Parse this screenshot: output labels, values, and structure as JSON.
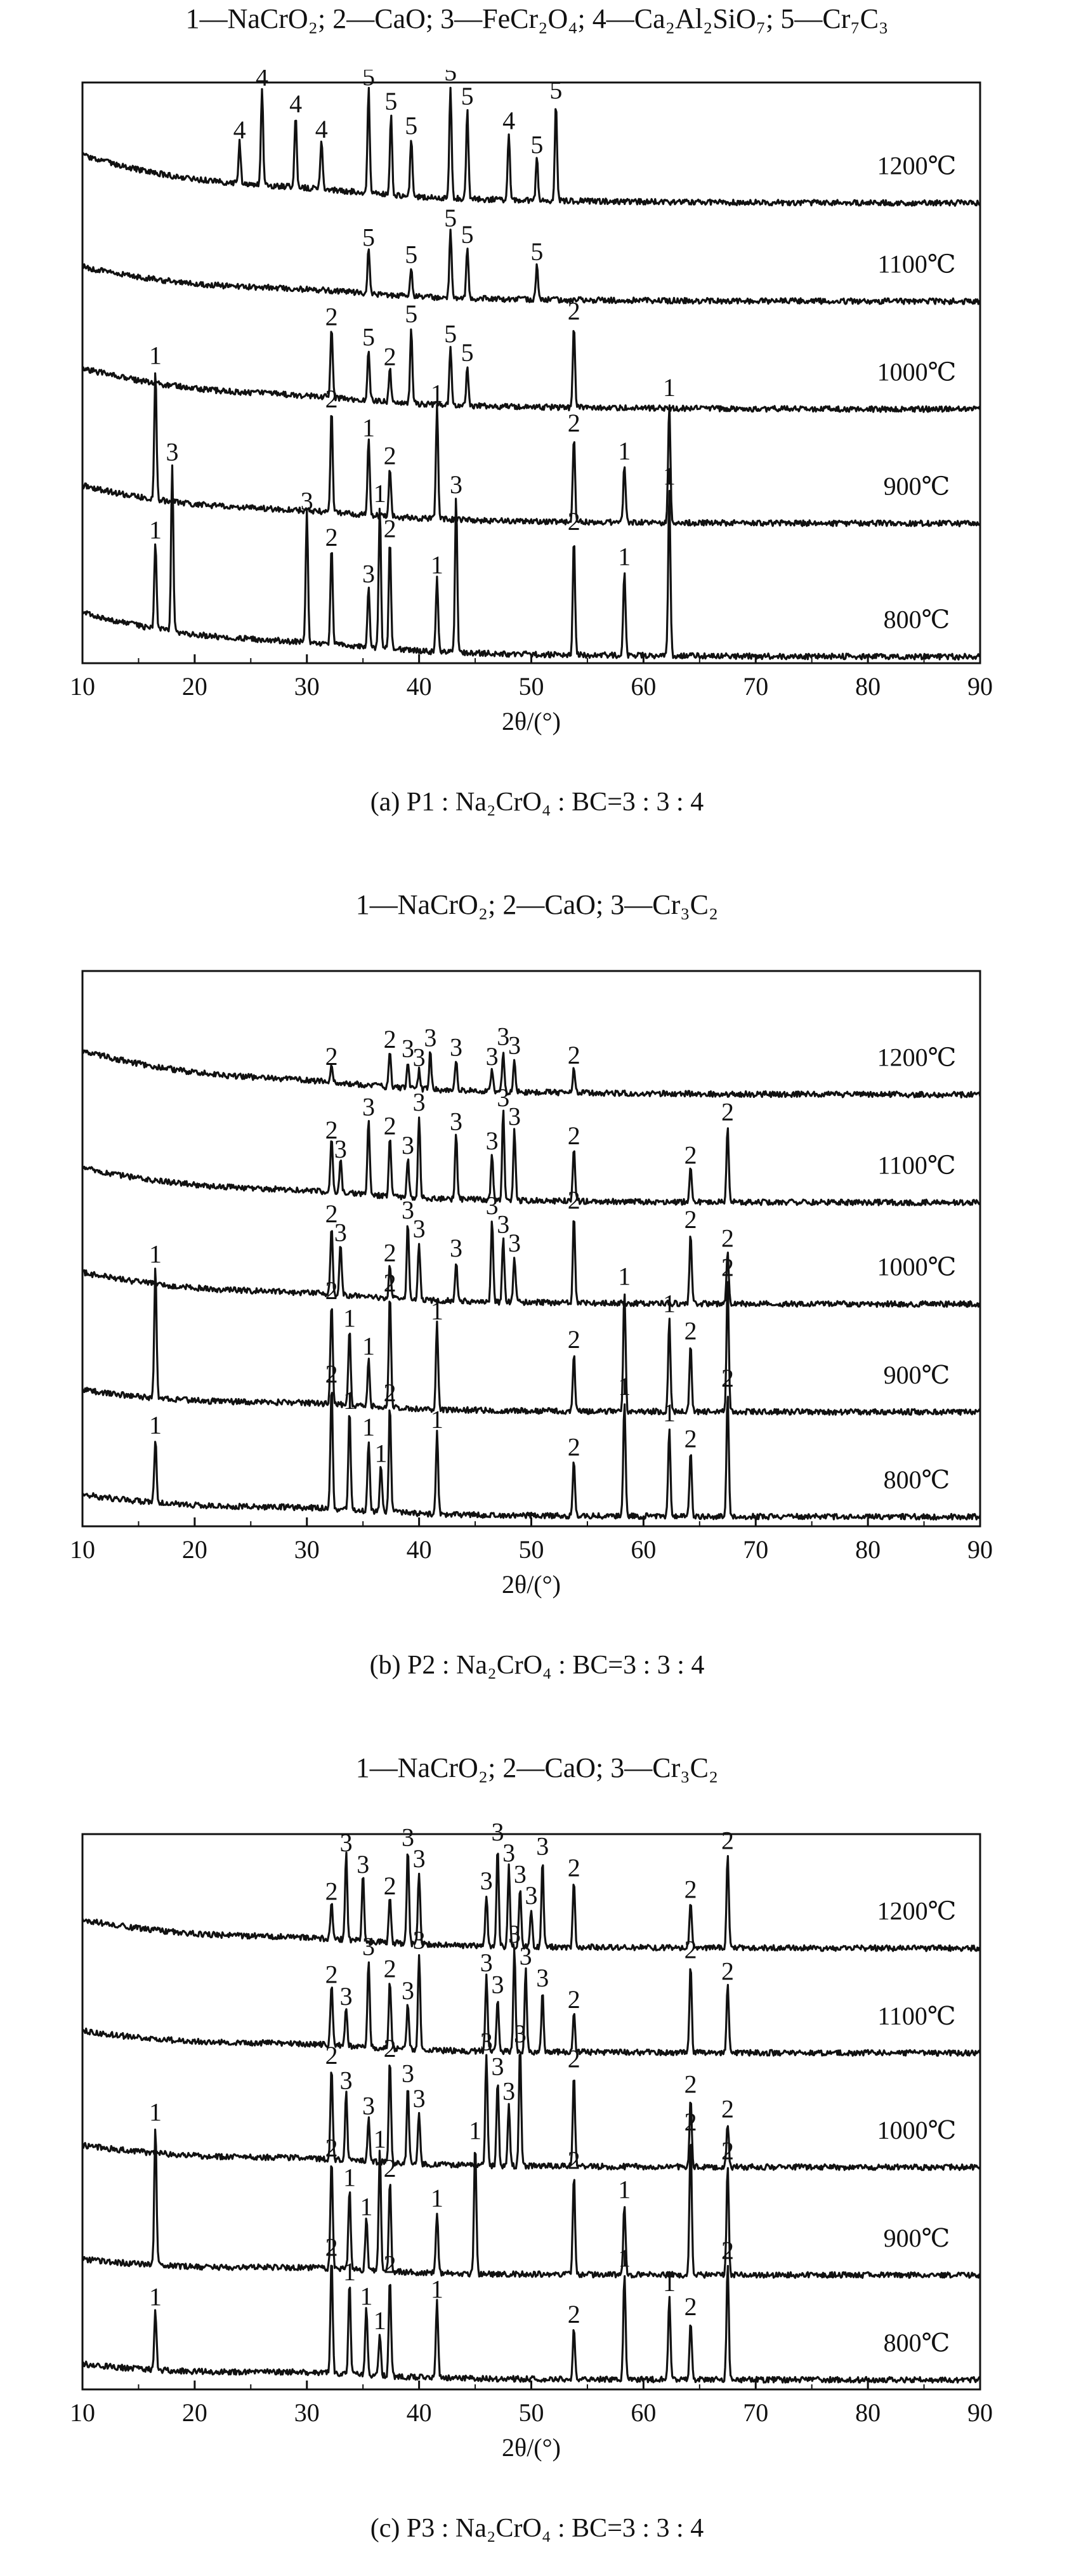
{
  "chart_data": [
    {
      "type": "line",
      "panel": "a",
      "legend": "1—NaCrO₂; 2—CaO; 3—FeCr₂O₄; 4—Ca₂Al₂SiO₇; 5—Cr₇C₃",
      "caption": "(a) P1 : Na₂CrO₄ : BC=3 : 3 : 4",
      "xlabel": "2θ/(°)",
      "ylabel": "",
      "xlim": [
        10,
        90
      ],
      "xticks": [
        "10",
        "20",
        "30",
        "40",
        "50",
        "60",
        "70",
        "80",
        "90"
      ],
      "grid": false,
      "series": [
        {
          "name": "1200℃",
          "peaks": [
            {
              "x": 24.0,
              "label": "4"
            },
            {
              "x": 26.0,
              "label": "4"
            },
            {
              "x": 29.0,
              "label": "4"
            },
            {
              "x": 31.3,
              "label": "4"
            },
            {
              "x": 35.5,
              "label": "5"
            },
            {
              "x": 37.5,
              "label": "5"
            },
            {
              "x": 39.3,
              "label": "5"
            },
            {
              "x": 42.8,
              "label": "5"
            },
            {
              "x": 44.3,
              "label": "5"
            },
            {
              "x": 48.0,
              "label": "4"
            },
            {
              "x": 50.5,
              "label": "5"
            },
            {
              "x": 52.2,
              "label": "5"
            }
          ]
        },
        {
          "name": "1100℃",
          "peaks": [
            {
              "x": 35.5,
              "label": "5"
            },
            {
              "x": 39.3,
              "label": "5"
            },
            {
              "x": 42.8,
              "label": "5"
            },
            {
              "x": 44.3,
              "label": "5"
            },
            {
              "x": 50.5,
              "label": "5"
            }
          ]
        },
        {
          "name": "1000℃",
          "peaks": [
            {
              "x": 32.2,
              "label": "2"
            },
            {
              "x": 35.5,
              "label": "5"
            },
            {
              "x": 37.4,
              "label": "2"
            },
            {
              "x": 39.3,
              "label": "5"
            },
            {
              "x": 42.8,
              "label": "5"
            },
            {
              "x": 44.3,
              "label": "5"
            },
            {
              "x": 53.8,
              "label": "2"
            }
          ]
        },
        {
          "name": "900℃",
          "peaks": [
            {
              "x": 16.5,
              "label": "1"
            },
            {
              "x": 32.2,
              "label": "2"
            },
            {
              "x": 35.5,
              "label": "1"
            },
            {
              "x": 37.4,
              "label": "2"
            },
            {
              "x": 41.6,
              "label": "1"
            },
            {
              "x": 53.8,
              "label": "2"
            },
            {
              "x": 58.3,
              "label": "1"
            },
            {
              "x": 62.3,
              "label": "1"
            }
          ]
        },
        {
          "name": "800℃",
          "peaks": [
            {
              "x": 16.5,
              "label": "1"
            },
            {
              "x": 18.0,
              "label": "3"
            },
            {
              "x": 30.0,
              "label": "3"
            },
            {
              "x": 32.2,
              "label": "2"
            },
            {
              "x": 35.5,
              "label": "3"
            },
            {
              "x": 36.5,
              "label": "1"
            },
            {
              "x": 37.4,
              "label": "2"
            },
            {
              "x": 41.6,
              "label": "1"
            },
            {
              "x": 43.3,
              "label": "3"
            },
            {
              "x": 53.8,
              "label": "2"
            },
            {
              "x": 58.3,
              "label": "1"
            },
            {
              "x": 62.3,
              "label": "1"
            }
          ]
        }
      ]
    },
    {
      "type": "line",
      "panel": "b",
      "legend": "1—NaCrO₂; 2—CaO; 3—Cr₃C₂",
      "caption": "(b) P2 : Na₂CrO₄ : BC=3 : 3 : 4",
      "xlabel": "2θ/(°)",
      "ylabel": "",
      "xlim": [
        10,
        90
      ],
      "xticks": [
        "10",
        "20",
        "30",
        "40",
        "50",
        "60",
        "70",
        "80",
        "90"
      ],
      "grid": false,
      "series": [
        {
          "name": "1200℃",
          "peaks": [
            {
              "x": 32.2,
              "label": "2"
            },
            {
              "x": 37.4,
              "label": "2"
            },
            {
              "x": 39.0,
              "label": "3"
            },
            {
              "x": 40.0,
              "label": "3"
            },
            {
              "x": 41.0,
              "label": "3"
            },
            {
              "x": 43.3,
              "label": "3"
            },
            {
              "x": 46.5,
              "label": "3"
            },
            {
              "x": 47.5,
              "label": "3"
            },
            {
              "x": 48.5,
              "label": "3"
            },
            {
              "x": 53.8,
              "label": "2"
            }
          ]
        },
        {
          "name": "1100℃",
          "peaks": [
            {
              "x": 32.2,
              "label": "2"
            },
            {
              "x": 33.0,
              "label": "3"
            },
            {
              "x": 35.5,
              "label": "3"
            },
            {
              "x": 37.4,
              "label": "2"
            },
            {
              "x": 39.0,
              "label": "3"
            },
            {
              "x": 40.0,
              "label": "3"
            },
            {
              "x": 43.3,
              "label": "3"
            },
            {
              "x": 46.5,
              "label": "3"
            },
            {
              "x": 47.5,
              "label": "3"
            },
            {
              "x": 48.5,
              "label": "3"
            },
            {
              "x": 53.8,
              "label": "2"
            },
            {
              "x": 64.2,
              "label": "2"
            },
            {
              "x": 67.5,
              "label": "2"
            }
          ]
        },
        {
          "name": "1000℃",
          "peaks": [
            {
              "x": 32.2,
              "label": "2"
            },
            {
              "x": 33.0,
              "label": "3"
            },
            {
              "x": 37.4,
              "label": "2"
            },
            {
              "x": 39.0,
              "label": "3"
            },
            {
              "x": 40.0,
              "label": "3"
            },
            {
              "x": 43.3,
              "label": "3"
            },
            {
              "x": 46.5,
              "label": "3"
            },
            {
              "x": 47.5,
              "label": "3"
            },
            {
              "x": 48.5,
              "label": "3"
            },
            {
              "x": 53.8,
              "label": "2"
            },
            {
              "x": 64.2,
              "label": "2"
            },
            {
              "x": 67.5,
              "label": "2"
            }
          ]
        },
        {
          "name": "900℃",
          "peaks": [
            {
              "x": 16.5,
              "label": "1"
            },
            {
              "x": 32.2,
              "label": "2"
            },
            {
              "x": 33.8,
              "label": "1"
            },
            {
              "x": 35.5,
              "label": "1"
            },
            {
              "x": 37.4,
              "label": "2"
            },
            {
              "x": 41.6,
              "label": "1"
            },
            {
              "x": 53.8,
              "label": "2"
            },
            {
              "x": 58.3,
              "label": "1"
            },
            {
              "x": 62.3,
              "label": "1"
            },
            {
              "x": 64.2,
              "label": "2"
            },
            {
              "x": 67.5,
              "label": "2"
            }
          ]
        },
        {
          "name": "800℃",
          "peaks": [
            {
              "x": 16.5,
              "label": "1"
            },
            {
              "x": 32.2,
              "label": "2"
            },
            {
              "x": 33.8,
              "label": "1"
            },
            {
              "x": 35.5,
              "label": "1"
            },
            {
              "x": 36.6,
              "label": "1"
            },
            {
              "x": 37.4,
              "label": "2"
            },
            {
              "x": 41.6,
              "label": "1"
            },
            {
              "x": 53.8,
              "label": "2"
            },
            {
              "x": 58.3,
              "label": "1"
            },
            {
              "x": 62.3,
              "label": "1"
            },
            {
              "x": 64.2,
              "label": "2"
            },
            {
              "x": 67.5,
              "label": "2"
            }
          ]
        }
      ]
    },
    {
      "type": "line",
      "panel": "c",
      "legend": "1—NaCrO₂; 2—CaO; 3—Cr₃C₂",
      "caption": "(c) P3 : Na₂CrO₄ : BC=3 : 3 : 4",
      "xlabel": "2θ/(°)",
      "ylabel": "",
      "xlim": [
        10,
        90
      ],
      "xticks": [
        "10",
        "20",
        "30",
        "40",
        "50",
        "60",
        "70",
        "80",
        "90"
      ],
      "grid": false,
      "series": [
        {
          "name": "1200℃",
          "peaks": [
            {
              "x": 32.2,
              "label": "2"
            },
            {
              "x": 33.5,
              "label": "3"
            },
            {
              "x": 35.0,
              "label": "3"
            },
            {
              "x": 37.4,
              "label": "2"
            },
            {
              "x": 39.0,
              "label": "3"
            },
            {
              "x": 40.0,
              "label": "3"
            },
            {
              "x": 46.0,
              "label": "3"
            },
            {
              "x": 47.0,
              "label": "3"
            },
            {
              "x": 48.0,
              "label": "3"
            },
            {
              "x": 49.0,
              "label": "3"
            },
            {
              "x": 50.0,
              "label": "3"
            },
            {
              "x": 51.0,
              "label": "3"
            },
            {
              "x": 53.8,
              "label": "2"
            },
            {
              "x": 64.2,
              "label": "2"
            },
            {
              "x": 67.5,
              "label": "2"
            }
          ]
        },
        {
          "name": "1100℃",
          "peaks": [
            {
              "x": 32.2,
              "label": "2"
            },
            {
              "x": 33.5,
              "label": "3"
            },
            {
              "x": 35.5,
              "label": "3"
            },
            {
              "x": 37.4,
              "label": "2"
            },
            {
              "x": 39.0,
              "label": "3"
            },
            {
              "x": 40.0,
              "label": "3"
            },
            {
              "x": 46.0,
              "label": "3"
            },
            {
              "x": 47.0,
              "label": "3"
            },
            {
              "x": 48.5,
              "label": "3"
            },
            {
              "x": 49.5,
              "label": "3"
            },
            {
              "x": 51.0,
              "label": "3"
            },
            {
              "x": 53.8,
              "label": "2"
            },
            {
              "x": 64.2,
              "label": "2"
            },
            {
              "x": 67.5,
              "label": "2"
            }
          ]
        },
        {
          "name": "1000℃",
          "peaks": [
            {
              "x": 32.2,
              "label": "2"
            },
            {
              "x": 33.5,
              "label": "3"
            },
            {
              "x": 35.5,
              "label": "3"
            },
            {
              "x": 37.4,
              "label": "2"
            },
            {
              "x": 39.0,
              "label": "3"
            },
            {
              "x": 40.0,
              "label": "3"
            },
            {
              "x": 46.0,
              "label": "3"
            },
            {
              "x": 47.0,
              "label": "3"
            },
            {
              "x": 48.0,
              "label": "3"
            },
            {
              "x": 49.0,
              "label": "3"
            },
            {
              "x": 53.8,
              "label": "2"
            },
            {
              "x": 64.2,
              "label": "2"
            },
            {
              "x": 67.5,
              "label": "2"
            }
          ]
        },
        {
          "name": "900℃",
          "peaks": [
            {
              "x": 16.5,
              "label": "1"
            },
            {
              "x": 32.2,
              "label": "2"
            },
            {
              "x": 33.8,
              "label": "1"
            },
            {
              "x": 35.3,
              "label": "1"
            },
            {
              "x": 36.5,
              "label": "1"
            },
            {
              "x": 37.4,
              "label": "2"
            },
            {
              "x": 41.6,
              "label": "1"
            },
            {
              "x": 45.0,
              "label": "1"
            },
            {
              "x": 53.8,
              "label": "2"
            },
            {
              "x": 58.3,
              "label": "1"
            },
            {
              "x": 64.2,
              "label": "2"
            },
            {
              "x": 67.5,
              "label": "2"
            }
          ]
        },
        {
          "name": "800℃",
          "peaks": [
            {
              "x": 16.5,
              "label": "1"
            },
            {
              "x": 32.2,
              "label": "2"
            },
            {
              "x": 33.8,
              "label": "1"
            },
            {
              "x": 35.3,
              "label": "1"
            },
            {
              "x": 36.5,
              "label": "1"
            },
            {
              "x": 37.4,
              "label": "2"
            },
            {
              "x": 41.6,
              "label": "1"
            },
            {
              "x": 53.8,
              "label": "2"
            },
            {
              "x": 58.3,
              "label": "1"
            },
            {
              "x": 62.3,
              "label": "1"
            },
            {
              "x": 64.2,
              "label": "2"
            },
            {
              "x": 67.5,
              "label": "2"
            }
          ]
        }
      ]
    }
  ]
}
